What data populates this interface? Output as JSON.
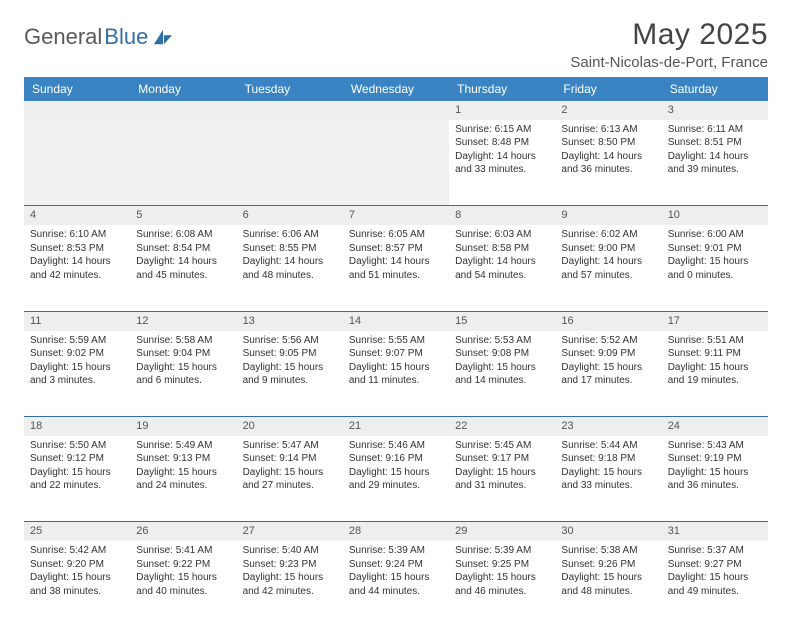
{
  "brand": {
    "part1": "General",
    "part2": "Blue"
  },
  "title": "May 2025",
  "location": "Saint-Nicolas-de-Port, France",
  "day_headers": [
    "Sunday",
    "Monday",
    "Tuesday",
    "Wednesday",
    "Thursday",
    "Friday",
    "Saturday"
  ],
  "colors": {
    "header_bg": "#3b84c4",
    "header_text": "#ffffff",
    "rule": "#2f6fa8",
    "daynum_bg": "#eeeeee",
    "text": "#333333"
  },
  "weeks": [
    [
      null,
      null,
      null,
      null,
      {
        "n": "1",
        "sr": "6:15 AM",
        "ss": "8:48 PM",
        "dl": "14 hours and 33 minutes."
      },
      {
        "n": "2",
        "sr": "6:13 AM",
        "ss": "8:50 PM",
        "dl": "14 hours and 36 minutes."
      },
      {
        "n": "3",
        "sr": "6:11 AM",
        "ss": "8:51 PM",
        "dl": "14 hours and 39 minutes."
      }
    ],
    [
      {
        "n": "4",
        "sr": "6:10 AM",
        "ss": "8:53 PM",
        "dl": "14 hours and 42 minutes."
      },
      {
        "n": "5",
        "sr": "6:08 AM",
        "ss": "8:54 PM",
        "dl": "14 hours and 45 minutes."
      },
      {
        "n": "6",
        "sr": "6:06 AM",
        "ss": "8:55 PM",
        "dl": "14 hours and 48 minutes."
      },
      {
        "n": "7",
        "sr": "6:05 AM",
        "ss": "8:57 PM",
        "dl": "14 hours and 51 minutes."
      },
      {
        "n": "8",
        "sr": "6:03 AM",
        "ss": "8:58 PM",
        "dl": "14 hours and 54 minutes."
      },
      {
        "n": "9",
        "sr": "6:02 AM",
        "ss": "9:00 PM",
        "dl": "14 hours and 57 minutes."
      },
      {
        "n": "10",
        "sr": "6:00 AM",
        "ss": "9:01 PM",
        "dl": "15 hours and 0 minutes."
      }
    ],
    [
      {
        "n": "11",
        "sr": "5:59 AM",
        "ss": "9:02 PM",
        "dl": "15 hours and 3 minutes."
      },
      {
        "n": "12",
        "sr": "5:58 AM",
        "ss": "9:04 PM",
        "dl": "15 hours and 6 minutes."
      },
      {
        "n": "13",
        "sr": "5:56 AM",
        "ss": "9:05 PM",
        "dl": "15 hours and 9 minutes."
      },
      {
        "n": "14",
        "sr": "5:55 AM",
        "ss": "9:07 PM",
        "dl": "15 hours and 11 minutes."
      },
      {
        "n": "15",
        "sr": "5:53 AM",
        "ss": "9:08 PM",
        "dl": "15 hours and 14 minutes."
      },
      {
        "n": "16",
        "sr": "5:52 AM",
        "ss": "9:09 PM",
        "dl": "15 hours and 17 minutes."
      },
      {
        "n": "17",
        "sr": "5:51 AM",
        "ss": "9:11 PM",
        "dl": "15 hours and 19 minutes."
      }
    ],
    [
      {
        "n": "18",
        "sr": "5:50 AM",
        "ss": "9:12 PM",
        "dl": "15 hours and 22 minutes."
      },
      {
        "n": "19",
        "sr": "5:49 AM",
        "ss": "9:13 PM",
        "dl": "15 hours and 24 minutes."
      },
      {
        "n": "20",
        "sr": "5:47 AM",
        "ss": "9:14 PM",
        "dl": "15 hours and 27 minutes."
      },
      {
        "n": "21",
        "sr": "5:46 AM",
        "ss": "9:16 PM",
        "dl": "15 hours and 29 minutes."
      },
      {
        "n": "22",
        "sr": "5:45 AM",
        "ss": "9:17 PM",
        "dl": "15 hours and 31 minutes."
      },
      {
        "n": "23",
        "sr": "5:44 AM",
        "ss": "9:18 PM",
        "dl": "15 hours and 33 minutes."
      },
      {
        "n": "24",
        "sr": "5:43 AM",
        "ss": "9:19 PM",
        "dl": "15 hours and 36 minutes."
      }
    ],
    [
      {
        "n": "25",
        "sr": "5:42 AM",
        "ss": "9:20 PM",
        "dl": "15 hours and 38 minutes."
      },
      {
        "n": "26",
        "sr": "5:41 AM",
        "ss": "9:22 PM",
        "dl": "15 hours and 40 minutes."
      },
      {
        "n": "27",
        "sr": "5:40 AM",
        "ss": "9:23 PM",
        "dl": "15 hours and 42 minutes."
      },
      {
        "n": "28",
        "sr": "5:39 AM",
        "ss": "9:24 PM",
        "dl": "15 hours and 44 minutes."
      },
      {
        "n": "29",
        "sr": "5:39 AM",
        "ss": "9:25 PM",
        "dl": "15 hours and 46 minutes."
      },
      {
        "n": "30",
        "sr": "5:38 AM",
        "ss": "9:26 PM",
        "dl": "15 hours and 48 minutes."
      },
      {
        "n": "31",
        "sr": "5:37 AM",
        "ss": "9:27 PM",
        "dl": "15 hours and 49 minutes."
      }
    ]
  ],
  "labels": {
    "sunrise": "Sunrise:",
    "sunset": "Sunset:",
    "daylight": "Daylight:"
  }
}
